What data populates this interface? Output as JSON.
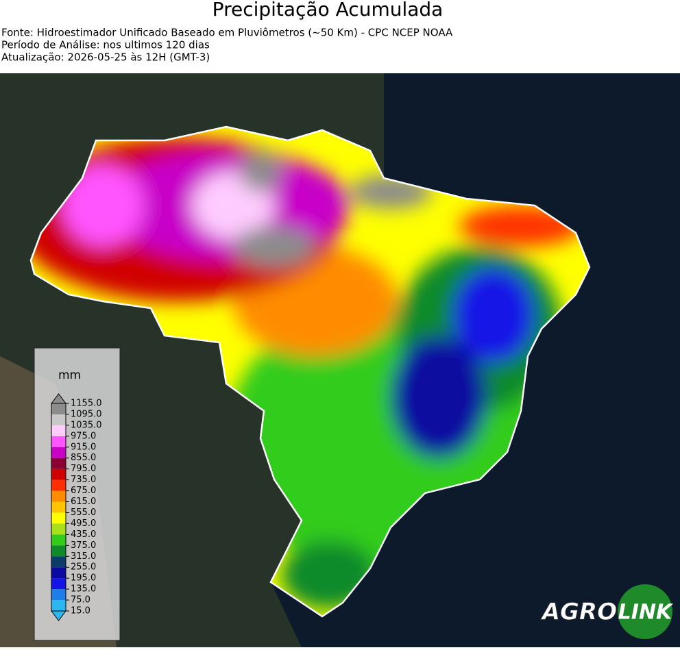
{
  "header": {
    "title": "Precipitação Acumulada",
    "lines": [
      "Fonte: Hidroestimador Unificado Baseado em Pluviômetros (~50 Km) - CPC NCEP NOAA",
      "Período de Análise: nos ultimos 120 dias",
      "Atualização: 2026-05-25 às 12H (GMT-3)"
    ]
  },
  "legend": {
    "unit": "mm",
    "ticks": [
      {
        "value": 15,
        "label": "15.0"
      },
      {
        "value": 75,
        "label": "75.0"
      },
      {
        "value": 135,
        "label": "135.0"
      },
      {
        "value": 195,
        "label": "195.0"
      },
      {
        "value": 255,
        "label": "255.0"
      },
      {
        "value": 315,
        "label": "315.0"
      },
      {
        "value": 375,
        "label": "375.0"
      },
      {
        "value": 435,
        "label": "435.0"
      },
      {
        "value": 495,
        "label": "495.0"
      },
      {
        "value": 555,
        "label": "555.0"
      },
      {
        "value": 615,
        "label": "615.0"
      },
      {
        "value": 675,
        "label": "675.0"
      },
      {
        "value": 735,
        "label": "735.0"
      },
      {
        "value": 795,
        "label": "795.0"
      },
      {
        "value": 855,
        "label": "855.0"
      },
      {
        "value": 915,
        "label": "915.0"
      },
      {
        "value": 975,
        "label": "975.0"
      },
      {
        "value": 1035,
        "label": "1035.0"
      },
      {
        "value": 1095,
        "label": "1095.0"
      },
      {
        "value": 1155,
        "label": "1155.0"
      }
    ],
    "colors": [
      "#2bb8f0",
      "#1e7ee8",
      "#1414e6",
      "#0a0aa0",
      "#0c3c6a",
      "#0f8a2a",
      "#33cc1a",
      "#a8e01a",
      "#ffff00",
      "#ffc400",
      "#ff8c00",
      "#ff3000",
      "#d00000",
      "#8b0030",
      "#c800c8",
      "#ff55ff",
      "#ffccff",
      "#c8c8c8",
      "#8c8c8c"
    ]
  },
  "logo": {
    "left": "AGRO",
    "right": "LINK"
  }
}
